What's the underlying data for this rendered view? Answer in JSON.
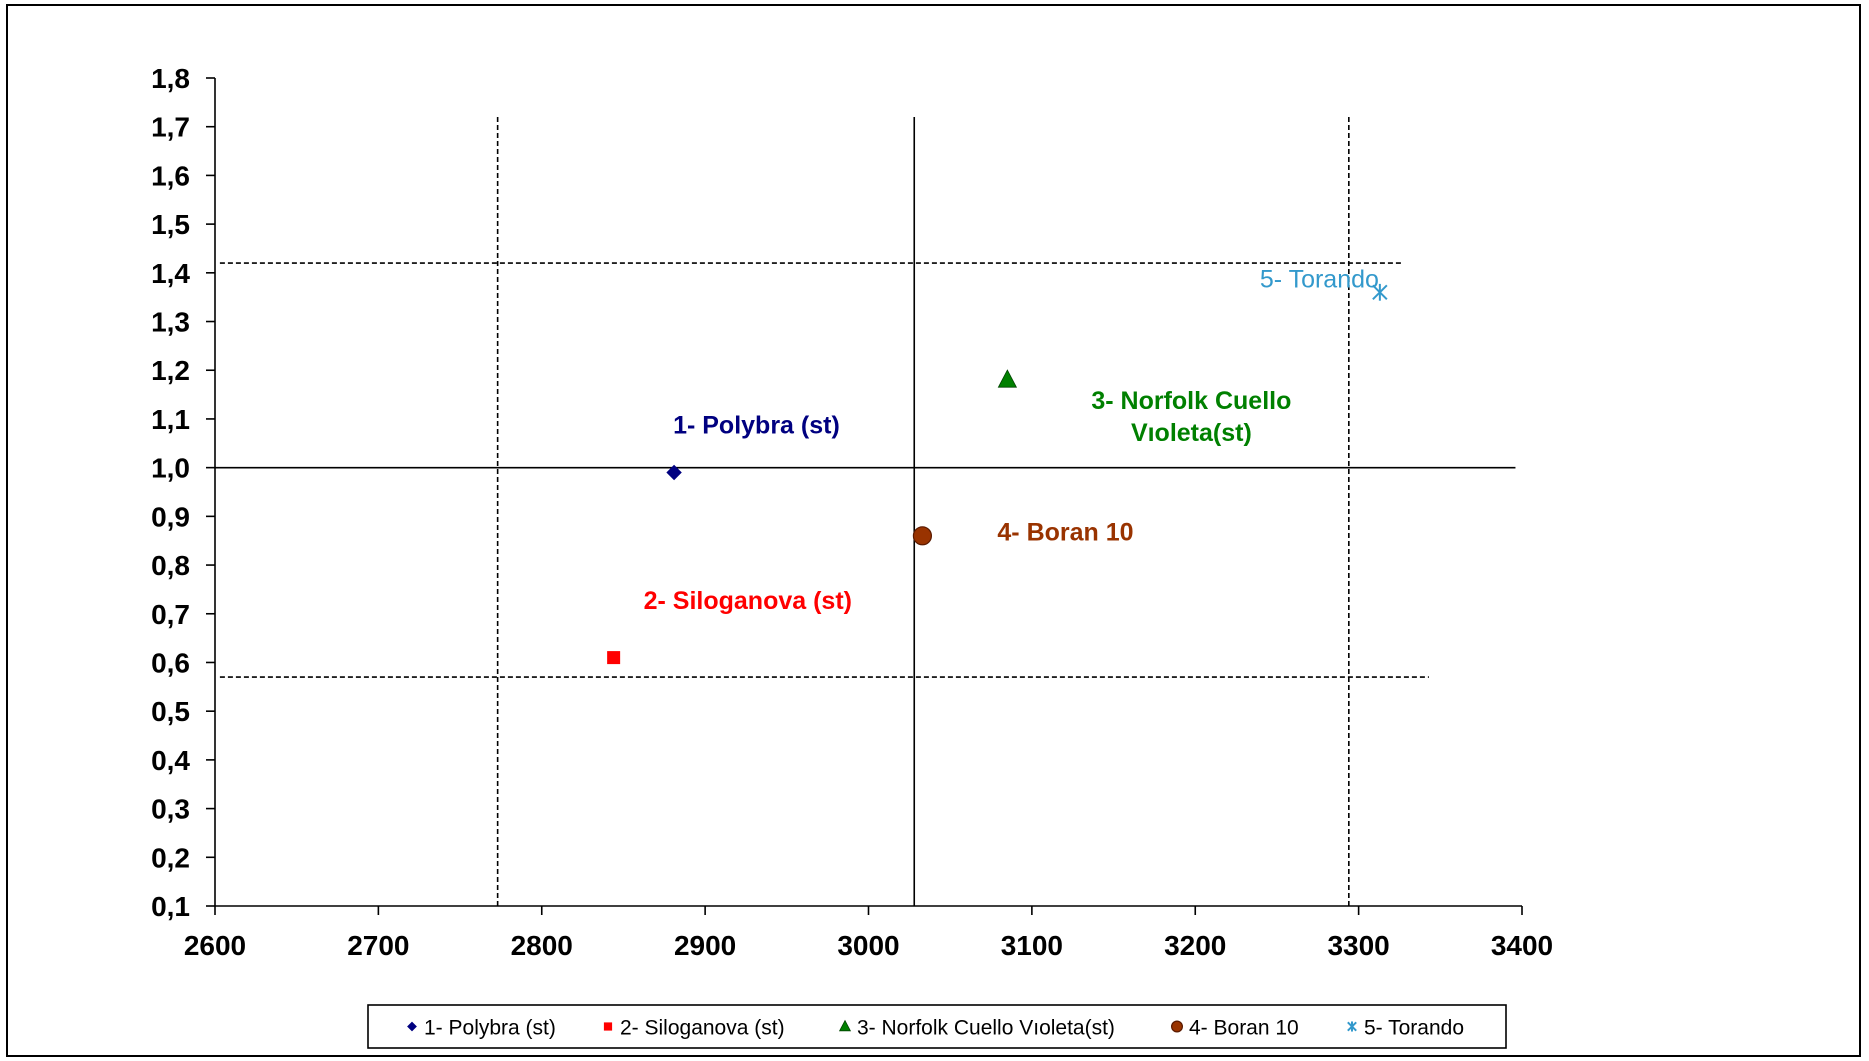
{
  "chart_data": {
    "type": "scatter",
    "title": "",
    "xlabel": "",
    "ylabel": "",
    "xlim": [
      2600,
      3400
    ],
    "ylim": [
      0.1,
      1.8
    ],
    "x_ticks": [
      {
        "value": 2600,
        "label": "2600"
      },
      {
        "value": 2700,
        "label": "2700"
      },
      {
        "value": 2800,
        "label": "2800"
      },
      {
        "value": 2900,
        "label": "2900"
      },
      {
        "value": 3000,
        "label": "3000"
      },
      {
        "value": 3100,
        "label": "3100"
      },
      {
        "value": 3200,
        "label": "3200"
      },
      {
        "value": 3300,
        "label": "3300"
      },
      {
        "value": 3400,
        "label": "3400"
      }
    ],
    "y_ticks": [
      {
        "value": 0.1,
        "label": "0,1"
      },
      {
        "value": 0.2,
        "label": "0,2"
      },
      {
        "value": 0.3,
        "label": "0,3"
      },
      {
        "value": 0.4,
        "label": "0,4"
      },
      {
        "value": 0.5,
        "label": "0,5"
      },
      {
        "value": 0.6,
        "label": "0,6"
      },
      {
        "value": 0.7,
        "label": "0,7"
      },
      {
        "value": 0.8,
        "label": "0,8"
      },
      {
        "value": 0.9,
        "label": "0,9"
      },
      {
        "value": 1.0,
        "label": "1,0"
      },
      {
        "value": 1.1,
        "label": "1,1"
      },
      {
        "value": 1.2,
        "label": "1,2"
      },
      {
        "value": 1.3,
        "label": "1,3"
      },
      {
        "value": 1.4,
        "label": "1,4"
      },
      {
        "value": 1.5,
        "label": "1,5"
      },
      {
        "value": 1.6,
        "label": "1,6"
      },
      {
        "value": 1.7,
        "label": "1,7"
      },
      {
        "value": 1.8,
        "label": "1,8"
      }
    ],
    "series": [
      {
        "name": "1- Polybra (st)",
        "x": 2881,
        "y": 0.99,
        "marker": "diamond",
        "color": "#000080",
        "label_lines": [
          "1- Polybra (st)"
        ],
        "label_bold": true,
        "label_dx": -1,
        "label_dy": 0.08
      },
      {
        "name": "2- Siloganova (st)",
        "x": 2844,
        "y": 0.61,
        "marker": "square",
        "color": "#ff0000",
        "label_lines": [
          "2- Siloganova (st)"
        ],
        "label_bold": true,
        "label_dx": 30,
        "label_dy": 0.1
      },
      {
        "name": "3- Norfolk Cuello Vıoleta(st)",
        "x": 3085,
        "y": 1.18,
        "marker": "triangle",
        "color": "#008000",
        "label_lines": [
          "3- Norfolk Cuello",
          "Vıoleta(st)"
        ],
        "label_bold": true,
        "label_dx": 74,
        "label_dy": -0.06
      },
      {
        "name": "4- Boran 10",
        "x": 3033,
        "y": 0.86,
        "marker": "circle",
        "color": "#993300",
        "label_lines": [
          "4- Boran 10"
        ],
        "label_bold": true,
        "label_dx": 75,
        "label_dy": -0.01
      },
      {
        "name": "5- Torando",
        "x": 3313,
        "y": 1.36,
        "marker": "asterisk",
        "color": "#3399cc",
        "label_lines": [
          "5- Torando"
        ],
        "label_bold": false,
        "label_dx": -120,
        "label_dy": 0.01
      }
    ],
    "reference_lines": [
      {
        "orientation": "vertical",
        "x": 3028,
        "y_range": [
          0.1,
          1.72
        ],
        "style": "solid"
      },
      {
        "orientation": "vertical",
        "x": 2773,
        "y_range": [
          0.1,
          1.72
        ],
        "style": "dashed"
      },
      {
        "orientation": "vertical",
        "x": 3294,
        "y_range": [
          0.1,
          1.72
        ],
        "style": "dashed"
      },
      {
        "orientation": "horizontal",
        "y": 1.0,
        "x_range": [
          2600,
          3396
        ],
        "style": "solid"
      },
      {
        "orientation": "horizontal",
        "y": 1.42,
        "x_range": [
          2603,
          3326
        ],
        "style": "dashed"
      },
      {
        "orientation": "horizontal",
        "y": 0.57,
        "x_range": [
          2603,
          3343
        ],
        "style": "dashed"
      }
    ],
    "grid": false,
    "legend": {
      "position": "bottom",
      "entries": [
        "1- Polybra (st)",
        "2- Siloganova (st)",
        "3- Norfolk Cuello Vıoleta(st)",
        "4- Boran 10",
        "5- Torando"
      ]
    }
  }
}
